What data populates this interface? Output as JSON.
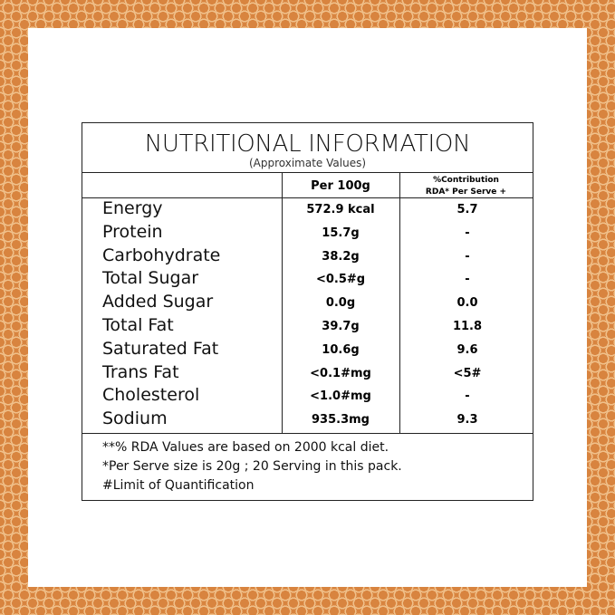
{
  "header": {
    "title": "NUTRITIONAL INFORMATION",
    "subtitle": "(Approximate Values)"
  },
  "table": {
    "columns": [
      "Per 100g",
      "%Contribution",
      "RDA* Per Serve +"
    ],
    "rows": [
      [
        "Energy",
        "572.9 kcal",
        "5.7"
      ],
      [
        "Protein",
        "15.7g",
        "-"
      ],
      [
        "Carbohydrate",
        "38.2g",
        "-"
      ],
      [
        "Total Sugar",
        "<0.5#g",
        "-"
      ],
      [
        "Added Sugar",
        "0.0g",
        "0.0"
      ],
      [
        "Total Fat",
        "39.7g",
        "11.8"
      ],
      [
        "Saturated Fat",
        "10.6g",
        "9.6"
      ],
      [
        "Trans Fat",
        "<0.1#mg",
        "<5#"
      ],
      [
        "Cholesterol",
        "<1.0#mg",
        "-"
      ],
      [
        "Sodium",
        "935.3mg",
        "9.3"
      ]
    ]
  },
  "notes": [
    "**% RDA Values are based on 2000 kcal diet.",
    "*Per Serve size is 20g ; 20 Serving in this pack.",
    "#Limit of Quantification"
  ]
}
